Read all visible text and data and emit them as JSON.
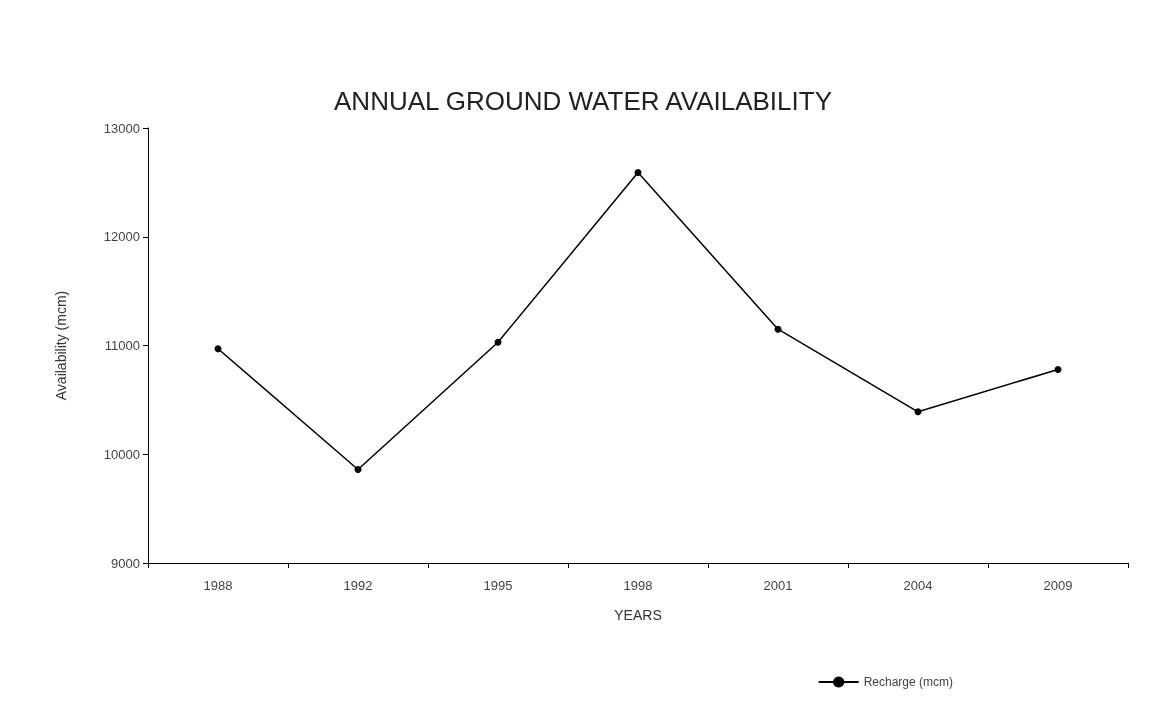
{
  "chart_data": {
    "type": "line",
    "title": "ANNUAL GROUND WATER AVAILABILITY",
    "xlabel": "YEARS",
    "ylabel": "Availability (mcm)",
    "categories": [
      "1988",
      "1992",
      "1995",
      "1998",
      "2001",
      "2004",
      "2009"
    ],
    "series": [
      {
        "name": "Recharge (mcm)",
        "color": "#000000",
        "values": [
          10970,
          9860,
          11030,
          12590,
          11150,
          10390,
          10780
        ]
      }
    ],
    "ylim": [
      9000,
      13000
    ],
    "yticks": [
      9000,
      10000,
      11000,
      12000,
      13000
    ],
    "grid": false,
    "legend": "bottom right",
    "marker": "circle",
    "line_style": "solid"
  }
}
